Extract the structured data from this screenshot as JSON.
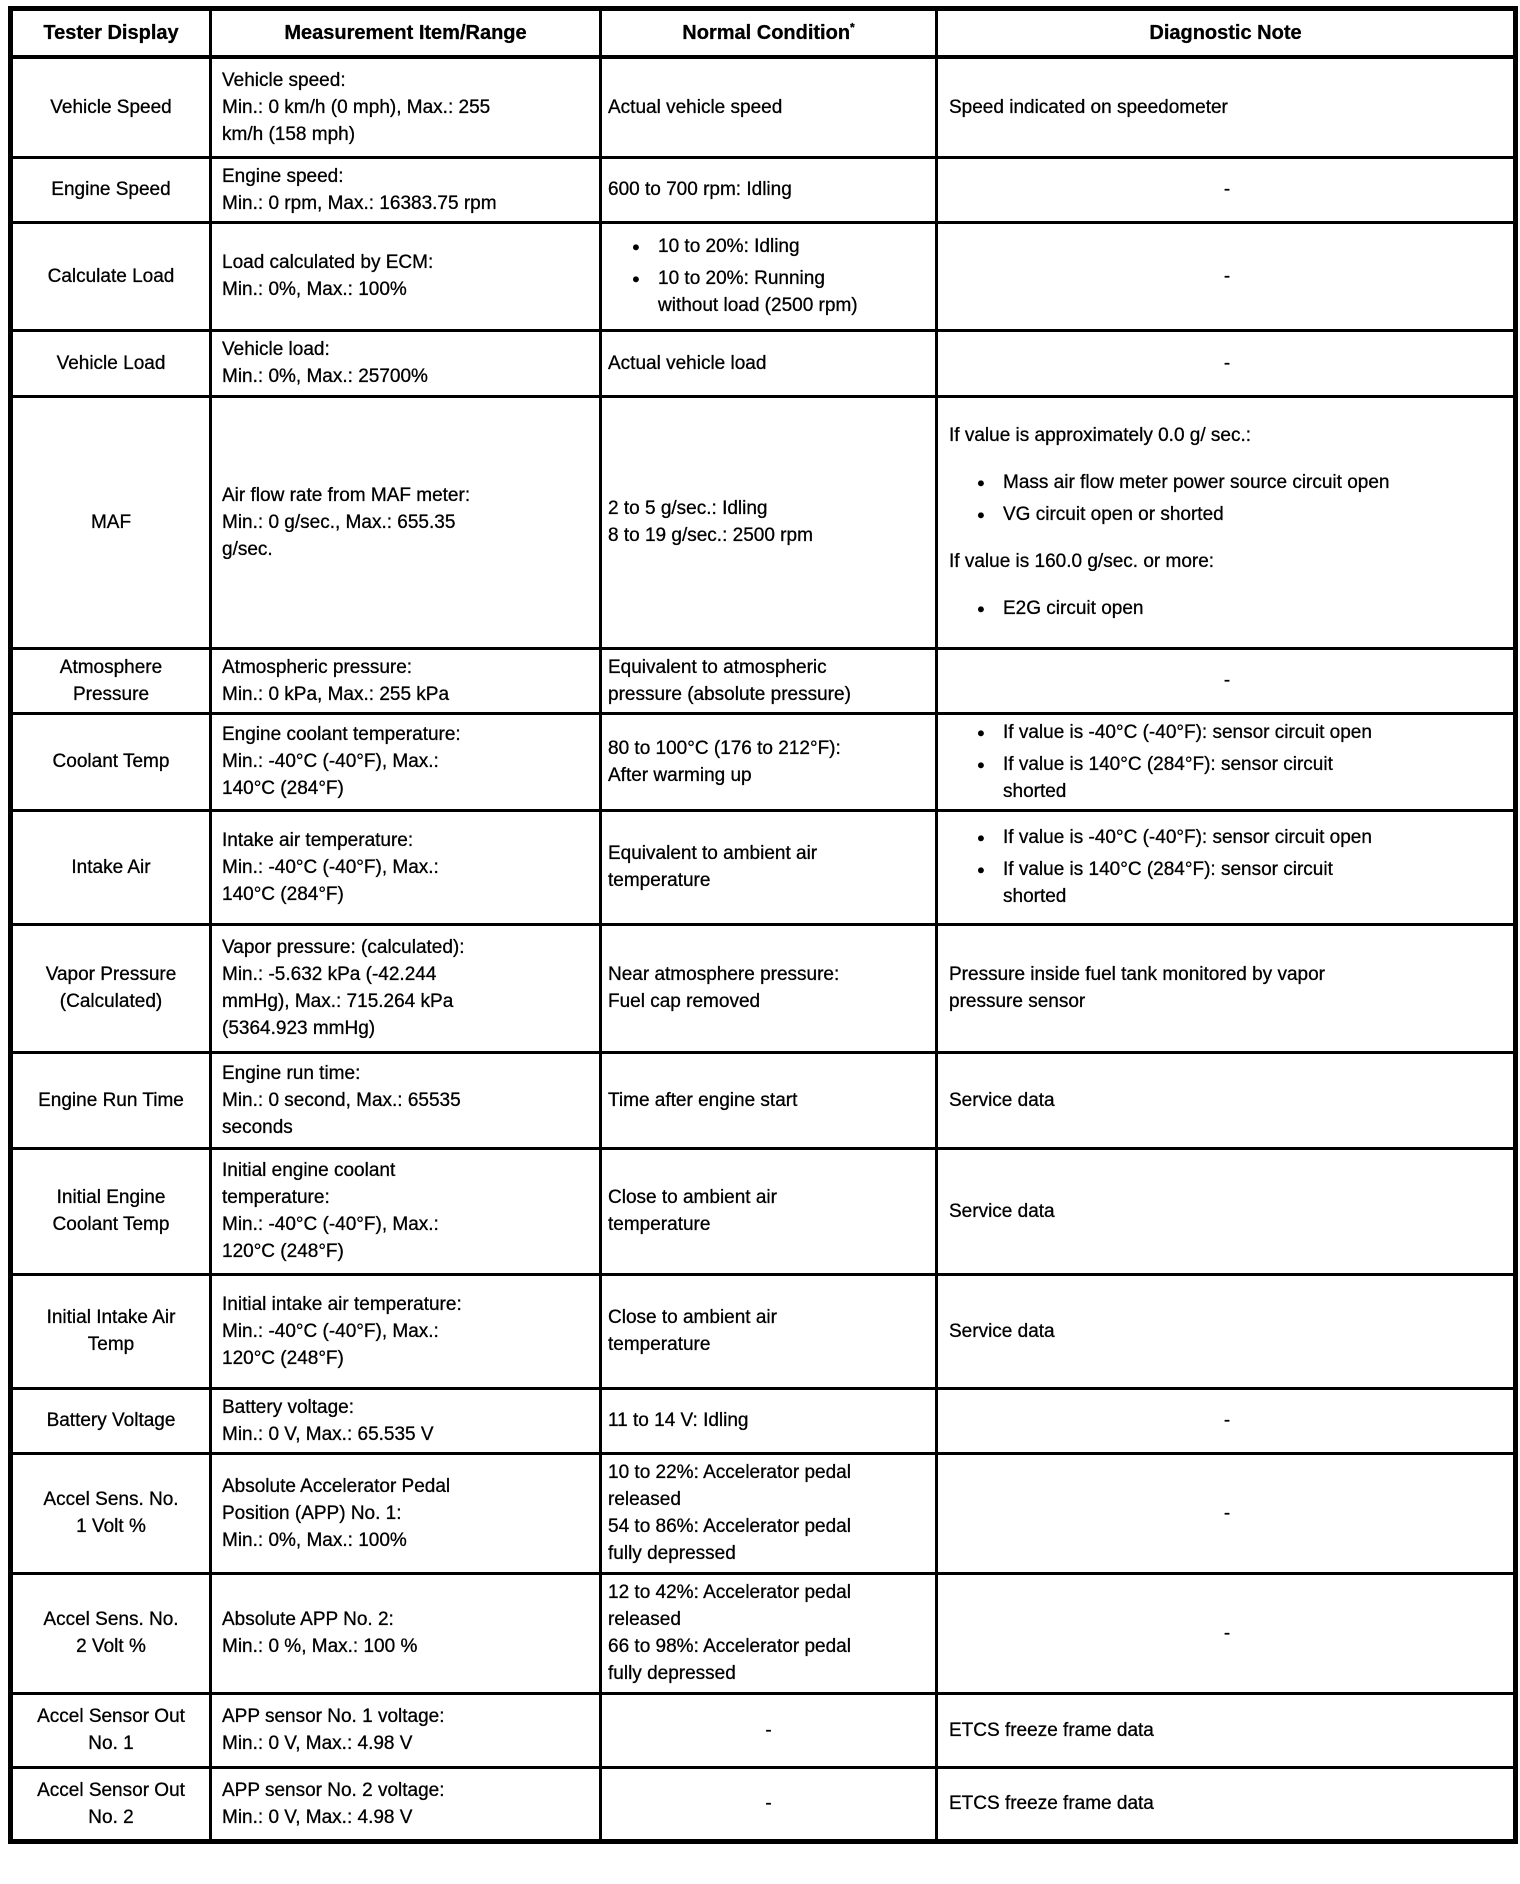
{
  "table": {
    "headers": [
      "Tester Display",
      "Measurement Item/Range",
      "Normal Condition",
      "Diagnostic Note"
    ],
    "normal_condition_footnote_mark": "*",
    "dash": "-",
    "bullet": "●",
    "rows": [
      {
        "display": "Vehicle Speed",
        "measurement": [
          {
            "p": "Vehicle speed:\nMin.: 0 km/h (0 mph), Max.: 255\nkm/h (158 mph)"
          }
        ],
        "normal": [
          {
            "p": "Actual vehicle speed"
          }
        ],
        "note": [
          {
            "p": "Speed indicated on speedometer"
          }
        ]
      },
      {
        "display": "Engine Speed",
        "measurement": [
          {
            "p": "Engine speed:\nMin.: 0 rpm, Max.: 16383.75 rpm"
          }
        ],
        "normal": [
          {
            "p": "600 to 700 rpm: Idling"
          }
        ],
        "note": [
          {
            "dash": true
          }
        ]
      },
      {
        "display": "Calculate Load",
        "measurement": [
          {
            "p": "Load calculated by ECM:\nMin.: 0%, Max.: 100%"
          }
        ],
        "normal": [
          {
            "ul": [
              "10 to 20%: Idling",
              "10 to 20%: Running\nwithout load (2500 rpm)"
            ]
          }
        ],
        "note": [
          {
            "dash": true
          }
        ]
      },
      {
        "display": "Vehicle Load",
        "measurement": [
          {
            "p": "Vehicle load:\nMin.: 0%, Max.: 25700%"
          }
        ],
        "normal": [
          {
            "p": "Actual vehicle load"
          }
        ],
        "note": [
          {
            "dash": true
          }
        ]
      },
      {
        "display": "MAF",
        "measurement": [
          {
            "p": "Air flow rate from MAF meter:\nMin.: 0 g/sec., Max.: 655.35\ng/sec."
          }
        ],
        "normal": [
          {
            "p": "2 to 5 g/sec.: Idling\n8 to 19 g/sec.: 2500 rpm"
          }
        ],
        "note": [
          {
            "p": "If value is approximately 0.0 g/ sec.:"
          },
          {
            "ul": [
              "Mass air flow meter power source circuit open",
              "VG circuit open or shorted"
            ]
          },
          {
            "p": "If value is 160.0 g/sec. or more:"
          },
          {
            "ul": [
              "E2G circuit open"
            ]
          }
        ]
      },
      {
        "display": "Atmosphere\nPressure",
        "measurement": [
          {
            "p": "Atmospheric pressure:\nMin.: 0 kPa, Max.: 255 kPa"
          }
        ],
        "normal": [
          {
            "p": "Equivalent to atmospheric\npressure (absolute pressure)"
          }
        ],
        "note": [
          {
            "dash": true
          }
        ]
      },
      {
        "display": "Coolant Temp",
        "measurement": [
          {
            "p": "Engine coolant temperature:\nMin.: -40°C (-40°F), Max.:\n140°C (284°F)"
          }
        ],
        "normal": [
          {
            "p": "80 to 100°C (176 to 212°F):\nAfter warming up"
          }
        ],
        "note": [
          {
            "ul": [
              "If value is -40°C (-40°F): sensor circuit open",
              "If value is 140°C (284°F): sensor circuit\nshorted"
            ]
          }
        ]
      },
      {
        "display": "Intake Air",
        "measurement": [
          {
            "p": "Intake air temperature:\nMin.: -40°C (-40°F), Max.:\n140°C (284°F)"
          }
        ],
        "normal": [
          {
            "p": "Equivalent to ambient air\ntemperature"
          }
        ],
        "note": [
          {
            "ul": [
              "If value is -40°C (-40°F): sensor circuit open",
              "If value is 140°C (284°F): sensor circuit\nshorted"
            ]
          }
        ]
      },
      {
        "display": "Vapor Pressure\n(Calculated)",
        "measurement": [
          {
            "p": "Vapor pressure: (calculated):\nMin.: -5.632 kPa (-42.244\nmmHg), Max.: 715.264 kPa\n(5364.923 mmHg)"
          }
        ],
        "normal": [
          {
            "p": "Near atmosphere pressure:\nFuel cap removed"
          }
        ],
        "note": [
          {
            "p": "Pressure inside fuel tank monitored by vapor\npressure sensor"
          }
        ]
      },
      {
        "display": "Engine Run Time",
        "measurement": [
          {
            "p": "Engine run time:\nMin.: 0 second, Max.: 65535\nseconds"
          }
        ],
        "normal": [
          {
            "p": "Time after engine start"
          }
        ],
        "note": [
          {
            "p": "Service data"
          }
        ]
      },
      {
        "display": "Initial Engine\nCoolant Temp",
        "measurement": [
          {
            "p": "Initial engine coolant\ntemperature:\nMin.: -40°C (-40°F), Max.:\n120°C (248°F)"
          }
        ],
        "normal": [
          {
            "p": "Close to ambient air\ntemperature"
          }
        ],
        "note": [
          {
            "p": "Service data"
          }
        ]
      },
      {
        "display": "Initial Intake Air\nTemp",
        "measurement": [
          {
            "p": "Initial intake air temperature:\nMin.: -40°C (-40°F), Max.:\n120°C (248°F)"
          }
        ],
        "normal": [
          {
            "p": "Close to ambient air\ntemperature"
          }
        ],
        "note": [
          {
            "p": "Service data"
          }
        ]
      },
      {
        "display": "Battery Voltage",
        "measurement": [
          {
            "p": "Battery voltage:\nMin.: 0 V, Max.: 65.535 V"
          }
        ],
        "normal": [
          {
            "p": "11 to 14 V: Idling"
          }
        ],
        "note": [
          {
            "dash": true
          }
        ]
      },
      {
        "display": "Accel Sens. No.\n1 Volt %",
        "measurement": [
          {
            "p": "Absolute Accelerator Pedal\nPosition (APP) No. 1:\nMin.: 0%, Max.: 100%"
          }
        ],
        "normal": [
          {
            "p": "10 to 22%: Accelerator pedal\nreleased\n54 to 86%: Accelerator pedal\nfully depressed"
          }
        ],
        "note": [
          {
            "dash": true
          }
        ]
      },
      {
        "display": "Accel Sens. No.\n2 Volt %",
        "measurement": [
          {
            "p": "Absolute APP No. 2:\nMin.: 0 %, Max.: 100 %"
          }
        ],
        "normal": [
          {
            "p": "12 to 42%: Accelerator pedal\nreleased\n66 to 98%: Accelerator pedal\nfully depressed"
          }
        ],
        "note": [
          {
            "dash": true
          }
        ]
      },
      {
        "display": "Accel Sensor Out\nNo. 1",
        "measurement": [
          {
            "p": "APP sensor No. 1 voltage:\nMin.: 0 V, Max.: 4.98 V"
          }
        ],
        "normal": [
          {
            "dash": true
          }
        ],
        "note": [
          {
            "p": "ETCS freeze frame data"
          }
        ]
      },
      {
        "display": "Accel Sensor Out\nNo. 2",
        "measurement": [
          {
            "p": "APP sensor No. 2 voltage:\nMin.: 0 V, Max.: 4.98 V"
          }
        ],
        "normal": [
          {
            "dash": true
          }
        ],
        "note": [
          {
            "p": "ETCS freeze frame data"
          }
        ]
      }
    ]
  }
}
